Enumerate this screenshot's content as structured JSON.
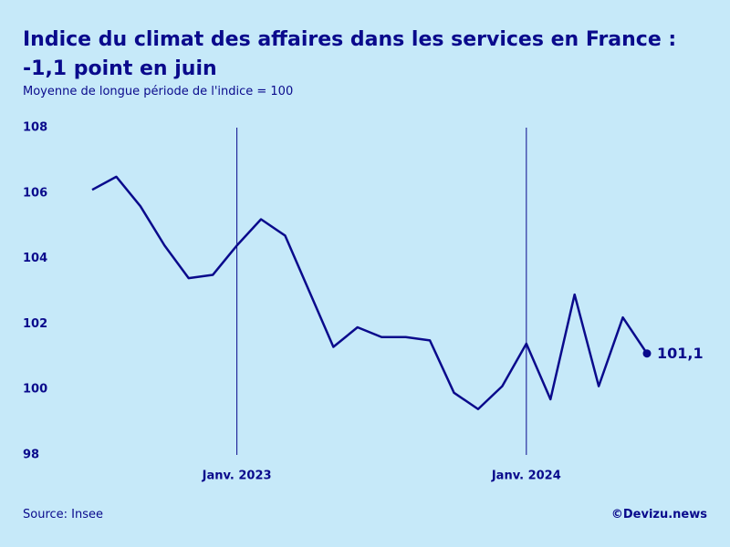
{
  "chart_data": {
    "type": "line",
    "title": "Indice du climat des affaires dans les services en France : -1,1 point en juin",
    "subtitle": "Moyenne de longue période de l'indice = 100",
    "source": "Source: Insee",
    "credit": "©Devizu.news",
    "categories": [
      null,
      null,
      null,
      null,
      null,
      null,
      "Janv. 2023",
      null,
      null,
      null,
      null,
      null,
      null,
      null,
      null,
      null,
      null,
      null,
      "Janv. 2024",
      null,
      null,
      null,
      null,
      null
    ],
    "series": [
      {
        "name": "Indice",
        "color": "#0a0a8c",
        "values": [
          106.1,
          106.5,
          105.6,
          104.4,
          103.4,
          103.5,
          104.4,
          105.2,
          104.7,
          103.0,
          101.3,
          101.9,
          101.6,
          101.6,
          101.5,
          99.9,
          99.4,
          100.1,
          101.4,
          99.7,
          102.9,
          100.1,
          102.2,
          101.1
        ],
        "value_labels": [
          null,
          null,
          null,
          null,
          null,
          null,
          null,
          null,
          null,
          null,
          null,
          null,
          null,
          null,
          null,
          null,
          null,
          null,
          null,
          null,
          null,
          null,
          null,
          "101,1"
        ]
      }
    ],
    "ylim": [
      98,
      108
    ],
    "yticks": [
      98,
      100,
      102,
      104,
      106,
      108
    ],
    "category_lines": true
  }
}
